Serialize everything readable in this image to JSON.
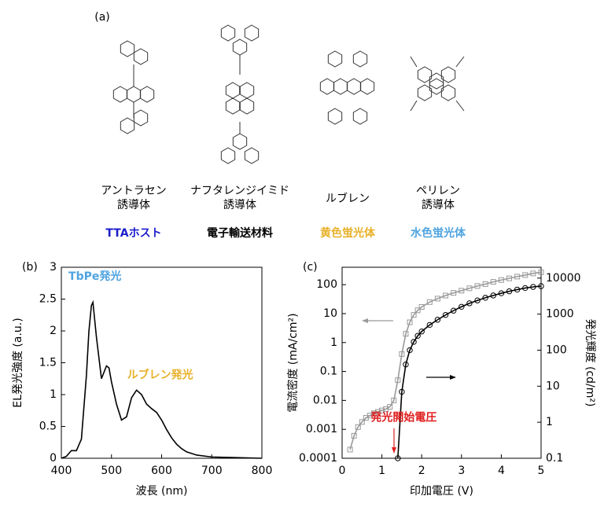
{
  "panel_a": {
    "label": "(a)",
    "molecules": [
      {
        "name_lines": [
          "アントラセン",
          "誘導体"
        ],
        "role": "TTAホスト",
        "role_color": "#1c1ccc"
      },
      {
        "name_lines": [
          "ナフタレンジイミド",
          "誘導体"
        ],
        "role": "電子輸送材料",
        "role_color": "#000000"
      },
      {
        "name_lines": [
          "ルブレン"
        ],
        "role": "黄色蛍光体",
        "role_color": "#e8b12a"
      },
      {
        "name_lines": [
          "ペリレン",
          "誘導体"
        ],
        "role": "水色蛍光体",
        "role_color": "#4fa3e0"
      }
    ]
  },
  "chart_data": [
    {
      "type": "line",
      "panel_label": "(b)",
      "x_label": "波長 (nm)",
      "y_label": "EL発光強度 (a.u.)",
      "x": [
        400,
        410,
        420,
        430,
        440,
        450,
        455,
        460,
        463,
        470,
        480,
        490,
        495,
        500,
        510,
        520,
        530,
        540,
        550,
        560,
        570,
        580,
        590,
        600,
        610,
        620,
        630,
        640,
        650,
        670,
        700,
        750,
        800
      ],
      "series": [
        {
          "color": "#000000",
          "values": [
            0,
            0.03,
            0.12,
            0.12,
            0.3,
            1.3,
            2.0,
            2.4,
            2.45,
            1.9,
            1.25,
            1.45,
            1.42,
            1.2,
            0.85,
            0.6,
            0.65,
            0.95,
            1.07,
            1.0,
            0.85,
            0.78,
            0.72,
            0.6,
            0.45,
            0.32,
            0.22,
            0.15,
            0.1,
            0.05,
            0.02,
            0.01,
            0
          ]
        }
      ],
      "xlim": [
        400,
        800
      ],
      "xticks": [
        400,
        500,
        600,
        700,
        800
      ],
      "ylim": [
        0,
        3
      ],
      "yticks": [
        0,
        0.5,
        1,
        1.5,
        2,
        2.5,
        3
      ],
      "annotations": [
        {
          "text": "TbPe発光",
          "color": "#4fa3e0",
          "x": 467,
          "y": 2.85
        },
        {
          "text": "ルブレン発光",
          "color": "#e8b12a",
          "x": 597,
          "y": 1.3
        }
      ]
    },
    {
      "type": "line",
      "panel_label": "(c)",
      "x_label": "印加電圧 (V)",
      "y_label": "電流密度 (mA/cm²)",
      "y2_label": "発光輝度 (cd/m²)",
      "x": [
        0.2,
        0.3,
        0.4,
        0.5,
        0.6,
        0.7,
        0.8,
        0.9,
        1.0,
        1.1,
        1.2,
        1.3,
        1.4,
        1.5,
        1.6,
        1.7,
        1.8,
        1.9,
        2.0,
        2.2,
        2.4,
        2.6,
        2.8,
        3.0,
        3.2,
        3.4,
        3.6,
        3.8,
        4.0,
        4.2,
        4.4,
        4.6,
        4.8,
        5.0
      ],
      "series": [
        {
          "color": "#999999",
          "marker": "square",
          "values": [
            0.0002,
            0.0006,
            0.0012,
            0.0018,
            0.0025,
            0.003,
            0.0036,
            0.004,
            0.0045,
            0.005,
            0.006,
            0.01,
            0.05,
            0.4,
            2,
            5,
            9,
            13,
            17,
            25,
            33,
            42,
            52,
            62,
            75,
            90,
            105,
            125,
            145,
            165,
            190,
            215,
            245,
            270
          ]
        },
        {
          "color": "#000000",
          "marker": "circle",
          "axis": "y2",
          "values": [
            null,
            null,
            null,
            null,
            null,
            null,
            null,
            null,
            null,
            null,
            null,
            null,
            0.1,
            7,
            40,
            100,
            170,
            250,
            330,
            500,
            700,
            950,
            1250,
            1600,
            2000,
            2400,
            2850,
            3300,
            3800,
            4300,
            4800,
            5300,
            5700,
            6000
          ]
        }
      ],
      "xlim": [
        0,
        5
      ],
      "xticks": [
        0,
        1,
        2,
        3,
        4,
        5
      ],
      "yscale": "log",
      "ylim": [
        0.0001,
        400
      ],
      "yticks": [
        0.0001,
        0.001,
        0.01,
        0.1,
        1,
        10,
        100
      ],
      "y2scale": "log",
      "y2lim": [
        0.1,
        20000
      ],
      "y2ticks": [
        0.1,
        1,
        10,
        100,
        1000,
        10000
      ],
      "annotations": [
        {
          "text": "発光開始電圧",
          "color": "#e02020",
          "x": 1.55,
          "y": 0.0025
        }
      ]
    }
  ]
}
